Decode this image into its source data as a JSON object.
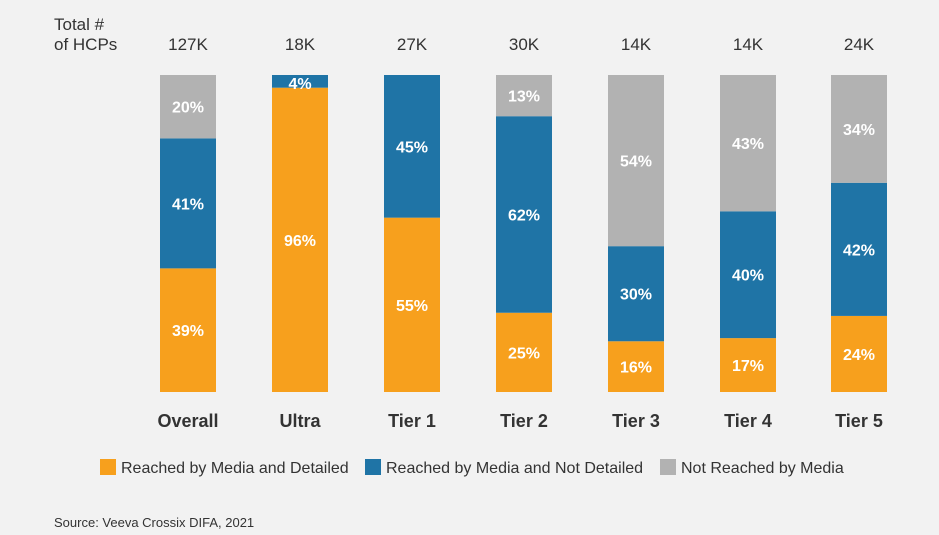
{
  "chart_data": {
    "type": "bar",
    "stacked": true,
    "normalized": true,
    "ylabel_lines": [
      "Total #",
      "of HCPs"
    ],
    "totals": [
      "127K",
      "18K",
      "27K",
      "30K",
      "14K",
      "14K",
      "24K"
    ],
    "categories": [
      "Overall",
      "Ultra",
      "Tier 1",
      "Tier 2",
      "Tier 3",
      "Tier 4",
      "Tier 5"
    ],
    "ylim": [
      0,
      100
    ],
    "series": [
      {
        "name": "Reached by Media and Detailed",
        "color": "#f7a01d",
        "values": [
          39,
          96,
          55,
          25,
          16,
          17,
          24
        ],
        "labels": [
          "39%",
          "96%",
          "55%",
          "25%",
          "16%",
          "17%",
          "24%"
        ]
      },
      {
        "name": "Reached by Media and Not Detailed",
        "color": "#1f74a6",
        "values": [
          41,
          4,
          45,
          62,
          30,
          40,
          42
        ],
        "labels": [
          "41%",
          "4%",
          "45%",
          "62%",
          "30%",
          "40%",
          "42%"
        ]
      },
      {
        "name": "Not Reached by Media",
        "color": "#b2b2b2",
        "values": [
          20,
          0,
          0,
          13,
          54,
          43,
          34
        ],
        "labels": [
          "20%",
          "",
          "",
          "13%",
          "54%",
          "43%",
          "34%"
        ]
      }
    ],
    "legend_position": "bottom",
    "grid": false
  },
  "source": "Source: Veeva Crossix DIFA, 2021"
}
